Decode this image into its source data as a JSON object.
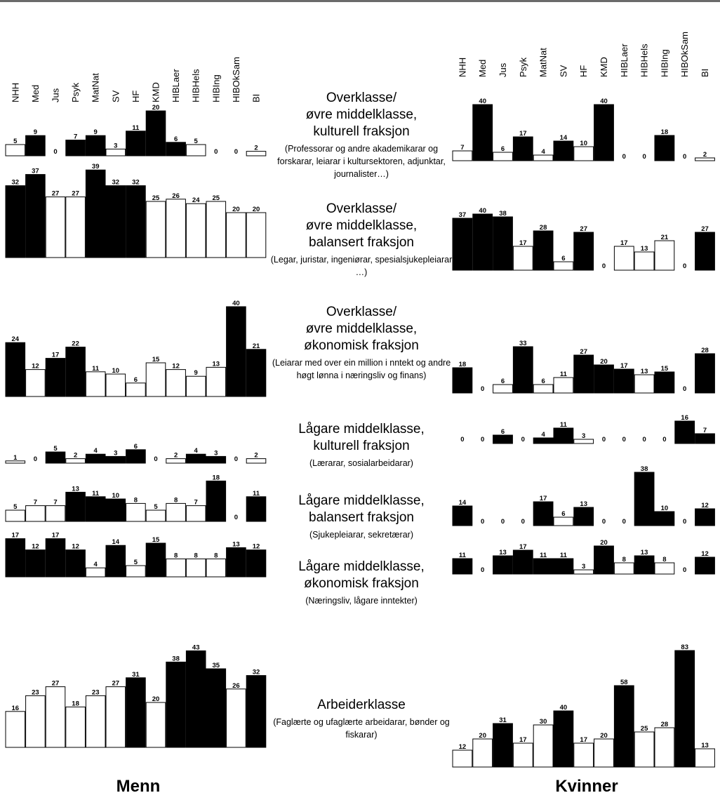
{
  "chart_data": {
    "type": "bar",
    "categories": [
      "NHH",
      "Med",
      "Jus",
      "Psyk",
      "MatNat",
      "SV",
      "HF",
      "KMD",
      "HIBLaer",
      "HIBHels",
      "HIBIng",
      "HIBOkSam",
      "BI"
    ],
    "panels": [
      {
        "name": "Menn",
        "groups": [
          {
            "values": [
              5,
              9,
              0,
              7,
              9,
              3,
              11,
              20,
              6,
              5,
              0,
              0,
              2
            ],
            "highlight": [
              false,
              true,
              false,
              true,
              true,
              false,
              true,
              true,
              true,
              false,
              false,
              false,
              false
            ]
          },
          {
            "values": [
              32,
              37,
              27,
              27,
              39,
              32,
              32,
              25,
              26,
              24,
              25,
              20,
              20
            ],
            "highlight": [
              true,
              true,
              false,
              false,
              true,
              true,
              true,
              false,
              false,
              false,
              false,
              false,
              false
            ]
          },
          {
            "values": [
              24,
              12,
              17,
              22,
              11,
              10,
              6,
              15,
              12,
              9,
              13,
              40,
              21
            ],
            "highlight": [
              true,
              false,
              true,
              true,
              false,
              false,
              false,
              false,
              false,
              false,
              false,
              true,
              true
            ]
          },
          {
            "values": [
              1,
              0,
              5,
              2,
              4,
              3,
              6,
              0,
              2,
              4,
              3,
              0,
              2
            ],
            "highlight": [
              false,
              false,
              true,
              false,
              true,
              true,
              true,
              false,
              false,
              true,
              true,
              false,
              false
            ]
          },
          {
            "values": [
              5,
              7,
              7,
              13,
              11,
              10,
              8,
              5,
              8,
              7,
              18,
              0,
              11
            ],
            "highlight": [
              false,
              false,
              false,
              true,
              true,
              true,
              false,
              false,
              false,
              false,
              true,
              false,
              true
            ]
          },
          {
            "values": [
              17,
              12,
              17,
              12,
              4,
              14,
              5,
              15,
              8,
              8,
              8,
              13,
              12
            ],
            "highlight": [
              true,
              true,
              true,
              true,
              false,
              true,
              false,
              true,
              false,
              false,
              false,
              true,
              true
            ]
          },
          {
            "values": [
              16,
              23,
              27,
              18,
              23,
              27,
              31,
              20,
              38,
              43,
              35,
              26,
              32
            ],
            "highlight": [
              false,
              false,
              false,
              false,
              false,
              false,
              true,
              false,
              true,
              true,
              true,
              false,
              true
            ]
          }
        ]
      },
      {
        "name": "Kvinner",
        "groups": [
          {
            "values": [
              7,
              40,
              6,
              17,
              4,
              14,
              10,
              40,
              0,
              0,
              18,
              0,
              2
            ],
            "highlight": [
              false,
              true,
              false,
              true,
              false,
              true,
              false,
              true,
              false,
              false,
              true,
              false,
              false
            ]
          },
          {
            "values": [
              37,
              40,
              38,
              17,
              28,
              6,
              27,
              0,
              17,
              13,
              21,
              0,
              27
            ],
            "highlight": [
              true,
              true,
              true,
              false,
              true,
              false,
              true,
              false,
              false,
              false,
              false,
              false,
              true
            ]
          },
          {
            "values": [
              18,
              0,
              6,
              33,
              6,
              11,
              27,
              20,
              17,
              13,
              15,
              0,
              28
            ],
            "highlight": [
              true,
              false,
              false,
              true,
              false,
              false,
              true,
              true,
              true,
              false,
              true,
              false,
              true
            ]
          },
          {
            "values": [
              0,
              0,
              6,
              0,
              4,
              11,
              3,
              0,
              0,
              0,
              0,
              16,
              7
            ],
            "highlight": [
              false,
              false,
              true,
              false,
              true,
              true,
              false,
              false,
              false,
              false,
              false,
              true,
              true
            ]
          },
          {
            "values": [
              14,
              0,
              0,
              0,
              17,
              6,
              13,
              0,
              0,
              38,
              10,
              0,
              12
            ],
            "highlight": [
              true,
              false,
              false,
              false,
              true,
              false,
              true,
              false,
              false,
              true,
              true,
              false,
              true
            ]
          },
          {
            "values": [
              11,
              0,
              13,
              17,
              11,
              11,
              3,
              20,
              8,
              13,
              8,
              0,
              12
            ],
            "highlight": [
              true,
              false,
              true,
              true,
              true,
              true,
              false,
              true,
              false,
              true,
              false,
              false,
              true
            ]
          },
          {
            "values": [
              12,
              20,
              31,
              17,
              30,
              40,
              17,
              20,
              58,
              25,
              28,
              83,
              13
            ],
            "highlight": [
              false,
              false,
              true,
              false,
              false,
              true,
              false,
              false,
              true,
              false,
              false,
              true,
              false
            ]
          }
        ]
      }
    ],
    "group_labels": [
      {
        "title": "Overklasse/\nøvre middelklasse,\nkulturell fraksjon",
        "desc": "(Professorar og andre akademikarar og forskarar, leiarar i kultursektoren, adjunktar, journalister…)"
      },
      {
        "title": "Overklasse/\nøvre middelklasse,\nbalansert fraksjon",
        "desc": "(Legar, juristar, ingeniørar, spesialsjukepleiarar …)"
      },
      {
        "title": "Overklasse/\nøvre middelklasse,\nøkonomisk fraksjon",
        "desc": "(Leiarar med over ein million i nntekt og andre høgt lønna i næringsliv og finans)"
      },
      {
        "title": "Lågare middelklasse,\nkulturell fraksjon",
        "desc": "(Lærarar, sosialarbeidarar)"
      },
      {
        "title": "Lågare middelklasse,\nbalansert fraksjon",
        "desc": "(Sjukepleiarar, sekretærar)"
      },
      {
        "title": "Lågare middelklasse,\nøkonomisk fraksjon",
        "desc": "(Næringsliv, lågare inntekter)"
      },
      {
        "title": "Arbeiderklasse",
        "desc": "(Faglærte og ufaglærte arbeidarar, bønder og fiskarar)"
      }
    ],
    "bar_colors": {
      "highlight": "#000000",
      "normal": "#ffffff",
      "stroke": "#000000"
    }
  }
}
